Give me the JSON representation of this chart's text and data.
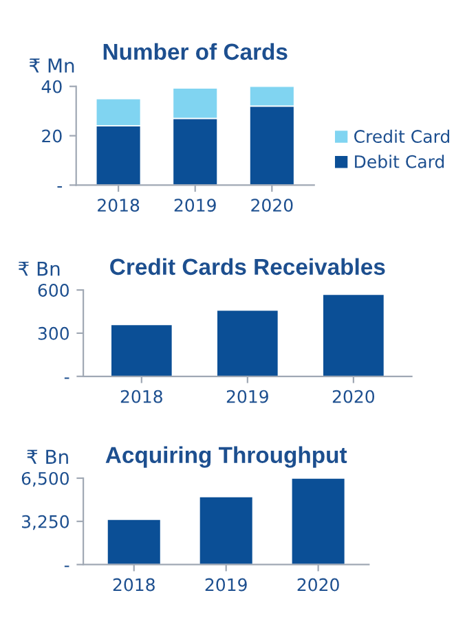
{
  "chart_data": [
    {
      "type": "bar",
      "title": "Number of Cards",
      "ylabel": "₹ Mn",
      "categories": [
        "2018",
        "2019",
        "2020"
      ],
      "stacked": true,
      "legend": "right",
      "series": [
        {
          "name": "Debit Card",
          "color": "#0b4f96",
          "values": [
            24,
            27,
            32
          ]
        },
        {
          "name": "Credit Card",
          "color": "#80d4f1",
          "values": [
            11,
            12.3,
            8
          ]
        }
      ],
      "ylim": [
        0,
        40
      ],
      "yticks": [
        {
          "value": 0,
          "label": "-"
        },
        20,
        40
      ]
    },
    {
      "type": "bar",
      "title": "Credit Cards Receivables",
      "ylabel": "₹ Bn",
      "categories": [
        "2018",
        "2019",
        "2020"
      ],
      "series": [
        {
          "color": "#0b4f96",
          "values": [
            360,
            460,
            570
          ]
        }
      ],
      "ylim": [
        0,
        600
      ],
      "yticks": [
        {
          "value": 0,
          "label": "-"
        },
        300,
        600
      ]
    },
    {
      "type": "bar",
      "title": "Acquiring Throughput",
      "ylabel": "₹ Bn",
      "categories": [
        "2018",
        "2019",
        "2020"
      ],
      "series": [
        {
          "color": "#0b4f96",
          "values": [
            3400,
            5100,
            6500
          ]
        }
      ],
      "ylim": [
        0,
        6500
      ],
      "yticks": [
        {
          "value": 0,
          "label": "-"
        },
        {
          "value": 3250,
          "label": "3,250"
        },
        {
          "value": 6500,
          "label": "6,500"
        }
      ]
    }
  ]
}
